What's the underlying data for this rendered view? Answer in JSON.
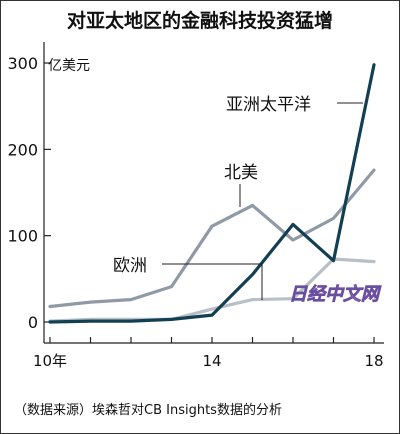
{
  "chart_data": {
    "type": "line",
    "title": "对亚太地区的金融科技投资猛增",
    "unit_label": "亿美元",
    "source": "（数据来源）埃森哲对CB Insights数据的分析",
    "watermark": "日经中文网",
    "x": [
      2010,
      2011,
      2012,
      2013,
      2014,
      2015,
      2016,
      2017,
      2018
    ],
    "x_ticks": [
      {
        "value": 2010,
        "label": "10年"
      },
      {
        "value": 2014,
        "label": "14"
      },
      {
        "value": 2018,
        "label": "18"
      }
    ],
    "y_ticks": [
      0,
      100,
      200,
      300
    ],
    "ylim": [
      0,
      320
    ],
    "xlim": [
      2010,
      2018
    ],
    "grid": false,
    "series": [
      {
        "name": "北美",
        "color": "#8f9aa6",
        "values": [
          18,
          23,
          26,
          41,
          111,
          135,
          95,
          120,
          176
        ]
      },
      {
        "name": "亚洲太平洋",
        "color": "#133f52",
        "values": [
          0,
          1,
          1,
          3,
          8,
          55,
          113,
          71,
          298
        ]
      },
      {
        "name": "欧洲",
        "color": "#b8bfc7",
        "values": [
          1,
          3,
          3,
          3,
          15,
          26,
          27,
          73,
          70
        ]
      }
    ]
  },
  "colors": {
    "frame": "#333333",
    "text": "#111111"
  }
}
